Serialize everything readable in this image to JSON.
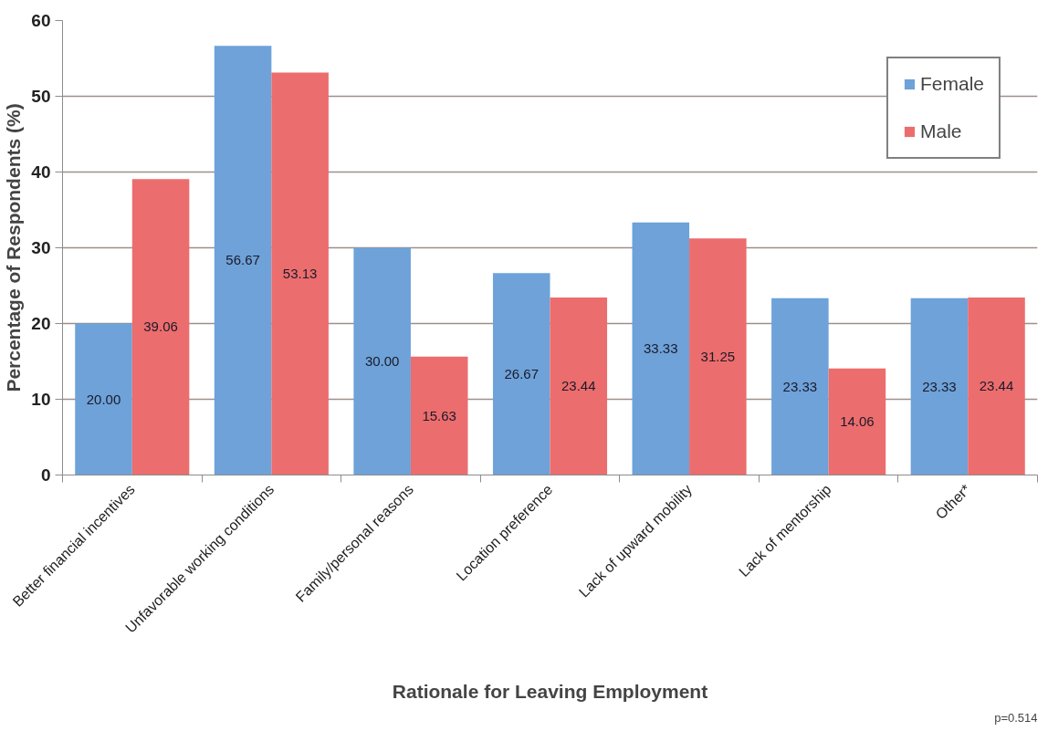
{
  "chart_data": {
    "type": "bar",
    "xlabel": "Rationale for Leaving Employment",
    "ylabel": "Percentage of Respondents (%)",
    "categories": [
      "Better financial incentives",
      "Unfavorable working conditions",
      "Family/personal reasons",
      "Location preference",
      "Lack of upward mobility",
      "Lack of mentorship",
      "Other*"
    ],
    "series": [
      {
        "name": "Female",
        "color": "#6ea2d9",
        "values": [
          20.0,
          56.67,
          30.0,
          26.67,
          33.33,
          23.33,
          23.33
        ],
        "value_labels": [
          "20.00",
          "56.67",
          "30.00",
          "26.67",
          "33.33",
          "23.33",
          "23.33"
        ]
      },
      {
        "name": "Male",
        "color": "#ec6d6d",
        "values": [
          39.06,
          53.13,
          15.63,
          23.44,
          31.25,
          14.06,
          23.44
        ],
        "value_labels": [
          "39.06",
          "53.13",
          "15.63",
          "23.44",
          "31.25",
          "14.06",
          "23.44"
        ]
      }
    ],
    "ylim": [
      0,
      60
    ],
    "yticks": [
      0,
      10,
      20,
      30,
      40,
      50,
      60
    ],
    "grid": "y",
    "legend": "top right",
    "annotations": [
      "p=0.514"
    ]
  }
}
